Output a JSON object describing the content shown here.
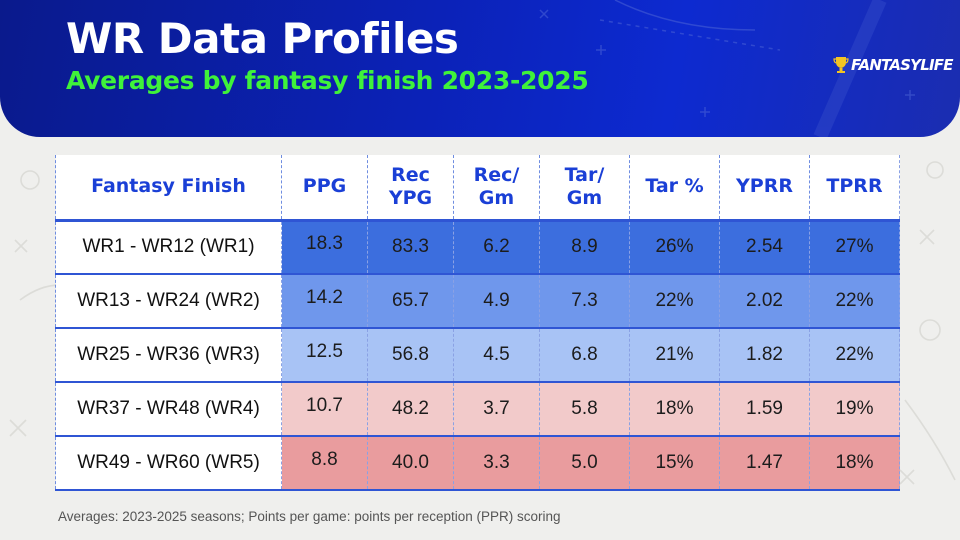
{
  "header": {
    "title": "WR Data Profiles",
    "subtitle": "Averages by fantasy finish 2023-2025",
    "logo_text_a": "FANTASY",
    "logo_text_b": "LIFE"
  },
  "colors": {
    "header_blue": "#0b22b8",
    "subtitle_green": "#3ff23a",
    "column_header_blue": "#1a3fd6",
    "tier_fills": [
      "#3c6ede",
      "#6f97ec",
      "#a8c3f5",
      "#f2caca",
      "#e99c9e"
    ]
  },
  "chart_data": {
    "type": "table",
    "columns": [
      "Fantasy Finish",
      "PPG",
      "Rec\nYPG",
      "Rec/\nGm",
      "Tar/\nGm",
      "Tar %",
      "YPRR",
      "TPRR"
    ],
    "rows": [
      [
        "WR1 - WR12 (WR1)",
        "18.3",
        "83.3",
        "6.2",
        "8.9",
        "26%",
        "2.54",
        "27%"
      ],
      [
        "WR13 - WR24 (WR2)",
        "14.2",
        "65.7",
        "4.9",
        "7.3",
        "22%",
        "2.02",
        "22%"
      ],
      [
        "WR25 - WR36 (WR3)",
        "12.5",
        "56.8",
        "4.5",
        "6.8",
        "21%",
        "1.82",
        "22%"
      ],
      [
        "WR37 - WR48 (WR4)",
        "10.7",
        "48.2",
        "3.7",
        "5.8",
        "18%",
        "1.59",
        "19%"
      ],
      [
        "WR49 - WR60 (WR5)",
        "8.8",
        "40.0",
        "3.3",
        "5.0",
        "15%",
        "1.47",
        "18%"
      ]
    ],
    "footnote": "Averages: 2023-2025 seasons; Points per game: points per reception (PPR) scoring"
  }
}
